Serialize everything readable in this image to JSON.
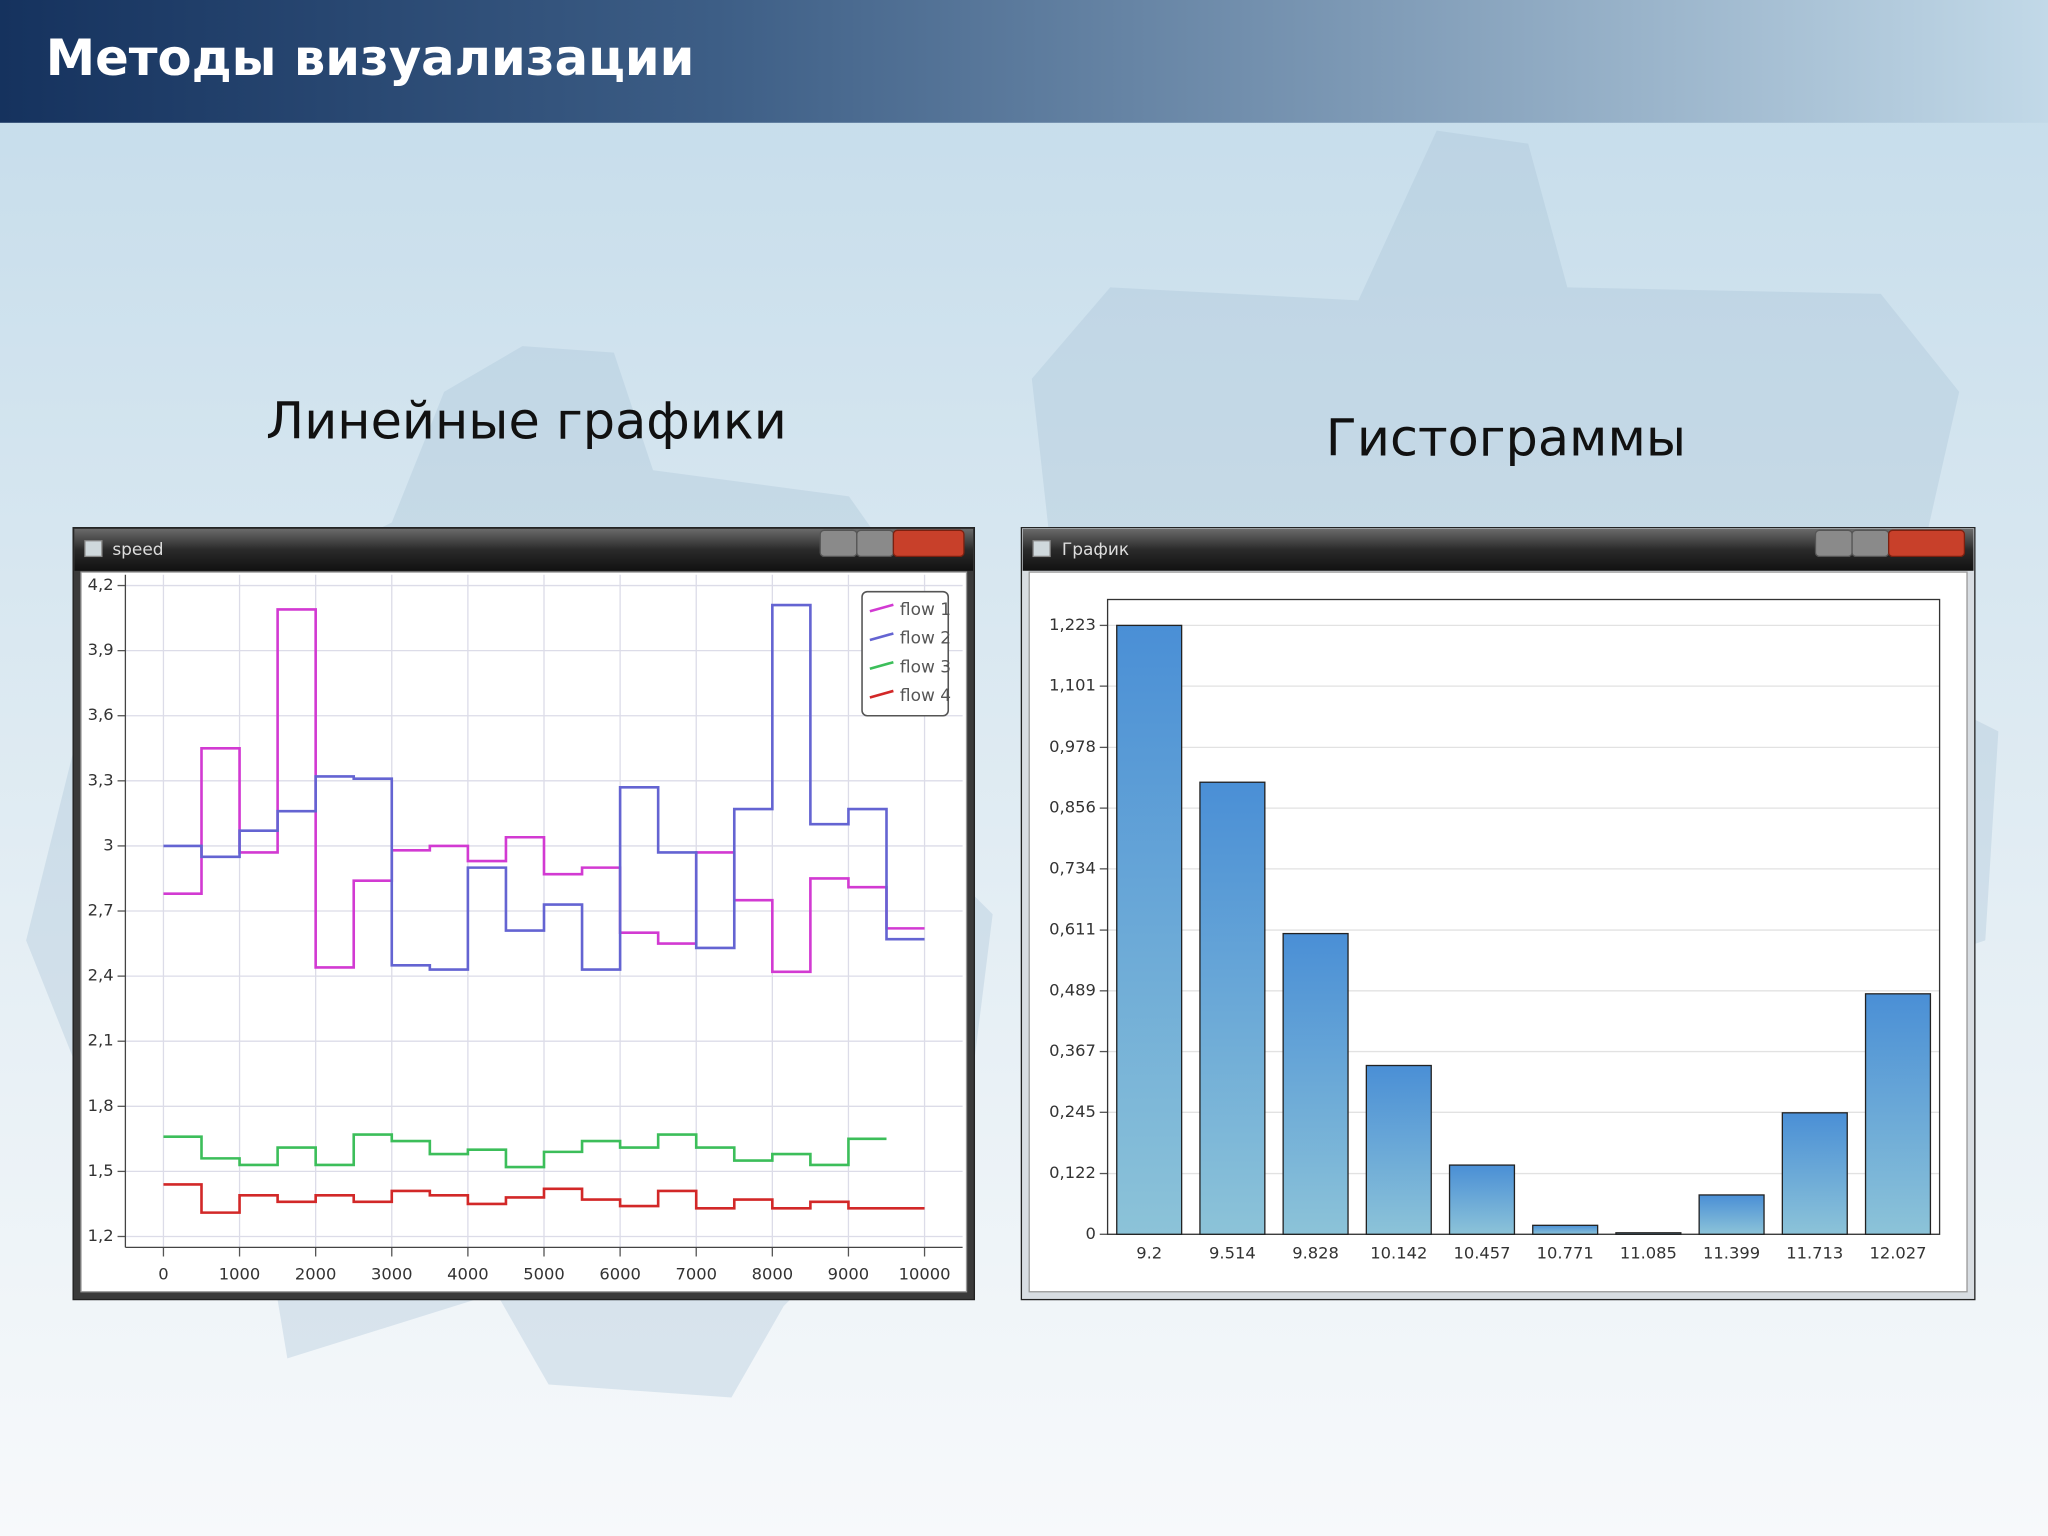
{
  "slide": {
    "title": "Методы визуализации",
    "captions": [
      "Линейные графики",
      "Гистограммы"
    ]
  },
  "windows": [
    {
      "title": "speed"
    },
    {
      "title": "График"
    }
  ],
  "chart_data": [
    {
      "type": "step",
      "x": [
        0,
        500,
        1000,
        1500,
        2000,
        2500,
        3000,
        3500,
        4000,
        4500,
        5000,
        5500,
        6000,
        6500,
        7000,
        7500,
        8000,
        8500,
        9000,
        9500,
        10000
      ],
      "xlim": [
        -500,
        10500
      ],
      "xticks": [
        0,
        1000,
        2000,
        3000,
        4000,
        5000,
        6000,
        7000,
        8000,
        9000,
        10000
      ],
      "ylim": [
        1.15,
        4.25
      ],
      "yticks": [
        {
          "value": 1.2,
          "label": "1,2"
        },
        {
          "value": 1.5,
          "label": "1,5"
        },
        {
          "value": 1.8,
          "label": "1,8"
        },
        {
          "value": 2.1,
          "label": "2,1"
        },
        {
          "value": 2.4,
          "label": "2,4"
        },
        {
          "value": 2.7,
          "label": "2,7"
        },
        3,
        {
          "value": 3.3,
          "label": "3,3"
        },
        {
          "value": 3.6,
          "label": "3,6"
        },
        {
          "value": 3.9,
          "label": "3,9"
        },
        {
          "value": 4.2,
          "label": "4,2"
        }
      ],
      "grid": true,
      "legend": "upper right",
      "series": [
        {
          "name": "flow 1",
          "color": "#d23ad2",
          "values": [
            2.78,
            3.45,
            2.97,
            4.09,
            2.44,
            2.84,
            2.98,
            3.0,
            2.93,
            3.04,
            2.87,
            2.9,
            2.6,
            2.55,
            2.97,
            2.75,
            2.42,
            2.85,
            2.81,
            2.62,
            2.62
          ]
        },
        {
          "name": "flow 2",
          "color": "#6464d2",
          "values": [
            3.0,
            2.95,
            3.07,
            3.16,
            3.32,
            3.31,
            2.45,
            2.43,
            2.9,
            2.61,
            2.73,
            2.43,
            3.27,
            2.97,
            2.53,
            3.17,
            4.11,
            3.1,
            3.17,
            2.57,
            2.57
          ]
        },
        {
          "name": "flow 3",
          "color": "#3cbe5a",
          "values": [
            1.66,
            1.56,
            1.53,
            1.61,
            1.53,
            1.67,
            1.64,
            1.58,
            1.6,
            1.52,
            1.59,
            1.64,
            1.61,
            1.67,
            1.61,
            1.55,
            1.58,
            1.53,
            1.65,
            1.65,
            null
          ]
        },
        {
          "name": "flow 4",
          "color": "#d22828",
          "values": [
            1.44,
            1.31,
            1.39,
            1.36,
            1.39,
            1.36,
            1.41,
            1.39,
            1.35,
            1.38,
            1.42,
            1.37,
            1.34,
            1.41,
            1.33,
            1.37,
            1.33,
            1.36,
            1.33,
            1.33,
            1.33
          ]
        }
      ]
    },
    {
      "type": "bar",
      "categories": [
        "9.2",
        "9.514",
        "9.828",
        "10.142",
        "10.457",
        "10.771",
        "11.085",
        "11.399",
        "11.713",
        "12.027"
      ],
      "values": [
        1.223,
        0.908,
        0.604,
        0.339,
        0.139,
        0.018,
        0.003,
        0.079,
        0.244,
        0.483
      ],
      "color": "#4a8fd6",
      "ylim": [
        0,
        1.275
      ],
      "yticks": [
        0,
        {
          "value": 0.122,
          "label": "0,122"
        },
        {
          "value": 0.245,
          "label": "0,245"
        },
        {
          "value": 0.367,
          "label": "0,367"
        },
        {
          "value": 0.489,
          "label": "0,489"
        },
        {
          "value": 0.611,
          "label": "0,611"
        },
        {
          "value": 0.734,
          "label": "0,734"
        },
        {
          "value": 0.856,
          "label": "0,856"
        },
        {
          "value": 0.978,
          "label": "0,978"
        },
        {
          "value": 1.101,
          "label": "1,101"
        },
        {
          "value": 1.223,
          "label": "1,223"
        }
      ],
      "grid": true
    }
  ]
}
